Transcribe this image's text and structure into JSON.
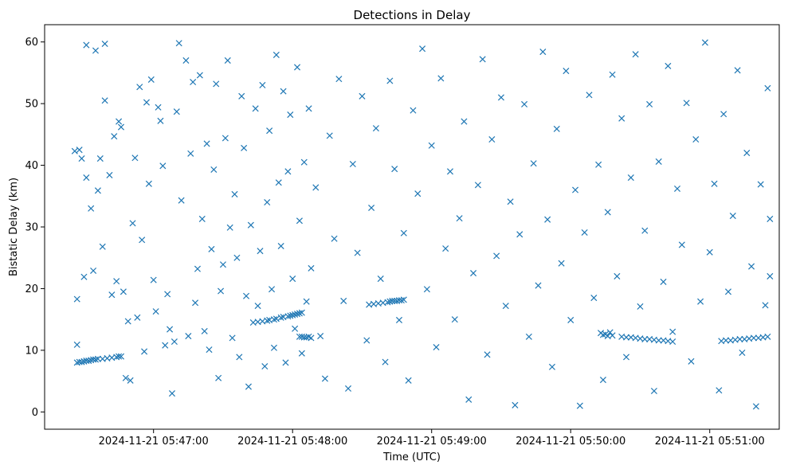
{
  "chart_data": {
    "type": "scatter",
    "title": "Detections in Delay",
    "xlabel": "Time (UTC)",
    "ylabel": "Bistatic Delay (km)",
    "marker": "x",
    "grid": false,
    "colors": {
      "series": "#1f77b4",
      "axes": "#000000"
    },
    "x_unit": "seconds after 2024-11-21 05:47:00 UTC",
    "xlim": [
      -47,
      270
    ],
    "ylim": [
      -2.8,
      62.8
    ],
    "x_ticks": [
      {
        "value": 0,
        "label": "2024-11-21 05:47:00"
      },
      {
        "value": 60,
        "label": "2024-11-21 05:48:00"
      },
      {
        "value": 120,
        "label": "2024-11-21 05:49:00"
      },
      {
        "value": 180,
        "label": "2024-11-21 05:50:00"
      },
      {
        "value": 240,
        "label": "2024-11-21 05:51:00"
      }
    ],
    "y_ticks": [
      {
        "value": 0,
        "label": "0"
      },
      {
        "value": 10,
        "label": "10"
      },
      {
        "value": 20,
        "label": "20"
      },
      {
        "value": 30,
        "label": "30"
      },
      {
        "value": 40,
        "label": "40"
      },
      {
        "value": 50,
        "label": "50"
      },
      {
        "value": 60,
        "label": "60"
      }
    ],
    "track_points": [
      [
        -33,
        8.0
      ],
      [
        -32,
        8.1
      ],
      [
        -31,
        8.1
      ],
      [
        -30,
        8.2
      ],
      [
        -29,
        8.3
      ],
      [
        -28,
        8.3
      ],
      [
        -27,
        8.4
      ],
      [
        -26,
        8.5
      ],
      [
        -25,
        8.5
      ],
      [
        -24,
        8.6
      ],
      [
        -22,
        8.6
      ],
      [
        -20,
        8.7
      ],
      [
        -18,
        8.8
      ],
      [
        -16,
        8.9
      ],
      [
        -15,
        9.0
      ],
      [
        -14,
        9.0
      ],
      [
        43,
        14.5
      ],
      [
        45,
        14.6
      ],
      [
        47,
        14.7
      ],
      [
        49,
        14.8
      ],
      [
        50,
        14.9
      ],
      [
        52,
        15.0
      ],
      [
        53,
        15.1
      ],
      [
        55,
        15.3
      ],
      [
        56,
        15.4
      ],
      [
        58,
        15.5
      ],
      [
        59,
        15.6
      ],
      [
        60,
        15.7
      ],
      [
        61,
        15.8
      ],
      [
        62,
        15.9
      ],
      [
        63,
        16.0
      ],
      [
        64,
        16.1
      ],
      [
        63,
        12.2
      ],
      [
        64,
        12.2
      ],
      [
        65,
        12.1
      ],
      [
        66,
        12.1
      ],
      [
        67,
        12.2
      ],
      [
        68,
        12.0
      ],
      [
        93,
        17.4
      ],
      [
        95,
        17.5
      ],
      [
        97,
        17.6
      ],
      [
        99,
        17.7
      ],
      [
        101,
        17.8
      ],
      [
        102,
        17.9
      ],
      [
        103,
        18.0
      ],
      [
        104,
        18.0
      ],
      [
        105,
        18.0
      ],
      [
        106,
        18.1
      ],
      [
        107,
        18.1
      ],
      [
        108,
        18.2
      ],
      [
        193,
        12.8
      ],
      [
        194,
        12.5
      ],
      [
        195,
        12.6
      ],
      [
        196,
        12.3
      ],
      [
        197,
        12.9
      ],
      [
        198,
        12.4
      ],
      [
        202,
        12.2
      ],
      [
        204,
        12.1
      ],
      [
        206,
        12.1
      ],
      [
        208,
        12.0
      ],
      [
        210,
        11.9
      ],
      [
        212,
        11.8
      ],
      [
        214,
        11.8
      ],
      [
        216,
        11.7
      ],
      [
        218,
        11.6
      ],
      [
        220,
        11.6
      ],
      [
        222,
        11.5
      ],
      [
        224,
        11.4
      ],
      [
        245,
        11.5
      ],
      [
        247,
        11.6
      ],
      [
        249,
        11.6
      ],
      [
        251,
        11.7
      ],
      [
        253,
        11.8
      ],
      [
        255,
        11.8
      ],
      [
        257,
        11.9
      ],
      [
        259,
        12.0
      ],
      [
        261,
        12.0
      ],
      [
        263,
        12.1
      ],
      [
        265,
        12.2
      ]
    ],
    "scattered_points": [
      [
        -34,
        42.3
      ],
      [
        -33,
        18.3
      ],
      [
        -33,
        10.9
      ],
      [
        -32,
        42.5
      ],
      [
        -31,
        41.1
      ],
      [
        -30,
        21.9
      ],
      [
        -29,
        59.5
      ],
      [
        -29,
        38.0
      ],
      [
        -27,
        33.0
      ],
      [
        -26,
        22.9
      ],
      [
        -25,
        58.6
      ],
      [
        -24,
        35.9
      ],
      [
        -23,
        41.1
      ],
      [
        -22,
        26.8
      ],
      [
        -21,
        59.7
      ],
      [
        -21,
        50.5
      ],
      [
        -19,
        38.4
      ],
      [
        -18,
        19.0
      ],
      [
        -17,
        44.7
      ],
      [
        -16,
        21.2
      ],
      [
        -15,
        47.1
      ],
      [
        -14,
        46.2
      ],
      [
        -13,
        19.5
      ],
      [
        -12,
        5.5
      ],
      [
        -11,
        14.7
      ],
      [
        -10,
        5.1
      ],
      [
        -9,
        30.6
      ],
      [
        -8,
        41.2
      ],
      [
        -7,
        15.3
      ],
      [
        -6,
        52.7
      ],
      [
        -5,
        27.9
      ],
      [
        -4,
        9.8
      ],
      [
        -3,
        50.2
      ],
      [
        -2,
        37.0
      ],
      [
        -1,
        53.9
      ],
      [
        0,
        21.4
      ],
      [
        1,
        16.3
      ],
      [
        2,
        49.4
      ],
      [
        3,
        47.2
      ],
      [
        4,
        39.9
      ],
      [
        5,
        10.8
      ],
      [
        6,
        19.1
      ],
      [
        7,
        13.4
      ],
      [
        8,
        3.0
      ],
      [
        9,
        11.4
      ],
      [
        10,
        48.7
      ],
      [
        11,
        59.8
      ],
      [
        12,
        34.3
      ],
      [
        14,
        57.0
      ],
      [
        15,
        12.3
      ],
      [
        16,
        41.9
      ],
      [
        17,
        53.5
      ],
      [
        18,
        17.7
      ],
      [
        19,
        23.2
      ],
      [
        20,
        54.6
      ],
      [
        21,
        31.3
      ],
      [
        22,
        13.1
      ],
      [
        23,
        43.5
      ],
      [
        24,
        10.1
      ],
      [
        25,
        26.4
      ],
      [
        26,
        39.3
      ],
      [
        27,
        53.2
      ],
      [
        28,
        5.5
      ],
      [
        29,
        19.6
      ],
      [
        30,
        23.9
      ],
      [
        31,
        44.4
      ],
      [
        32,
        57.0
      ],
      [
        33,
        29.9
      ],
      [
        34,
        12.0
      ],
      [
        35,
        35.3
      ],
      [
        36,
        25.0
      ],
      [
        37,
        8.9
      ],
      [
        38,
        51.2
      ],
      [
        39,
        42.8
      ],
      [
        40,
        18.8
      ],
      [
        41,
        4.1
      ],
      [
        42,
        30.3
      ],
      [
        44,
        49.2
      ],
      [
        45,
        17.2
      ],
      [
        46,
        26.1
      ],
      [
        47,
        53.0
      ],
      [
        48,
        7.4
      ],
      [
        49,
        34.0
      ],
      [
        50,
        45.6
      ],
      [
        51,
        19.9
      ],
      [
        52,
        10.4
      ],
      [
        53,
        57.9
      ],
      [
        54,
        37.2
      ],
      [
        55,
        26.9
      ],
      [
        56,
        52.0
      ],
      [
        57,
        8.0
      ],
      [
        58,
        39.0
      ],
      [
        59,
        48.2
      ],
      [
        60,
        21.6
      ],
      [
        61,
        13.5
      ],
      [
        62,
        55.9
      ],
      [
        63,
        31.0
      ],
      [
        64,
        9.5
      ],
      [
        65,
        40.5
      ],
      [
        66,
        17.9
      ],
      [
        67,
        49.2
      ],
      [
        68,
        23.3
      ],
      [
        70,
        36.4
      ],
      [
        72,
        12.3
      ],
      [
        74,
        5.4
      ],
      [
        76,
        44.8
      ],
      [
        78,
        28.1
      ],
      [
        80,
        54.0
      ],
      [
        82,
        18.0
      ],
      [
        84,
        3.8
      ],
      [
        86,
        40.2
      ],
      [
        88,
        25.8
      ],
      [
        90,
        51.2
      ],
      [
        92,
        11.6
      ],
      [
        94,
        33.1
      ],
      [
        96,
        46.0
      ],
      [
        98,
        21.6
      ],
      [
        100,
        8.1
      ],
      [
        102,
        53.7
      ],
      [
        104,
        39.4
      ],
      [
        106,
        14.9
      ],
      [
        108,
        29.0
      ],
      [
        110,
        5.1
      ],
      [
        112,
        48.9
      ],
      [
        114,
        35.4
      ],
      [
        116,
        58.9
      ],
      [
        118,
        19.9
      ],
      [
        120,
        43.2
      ],
      [
        122,
        10.5
      ],
      [
        124,
        54.1
      ],
      [
        126,
        26.5
      ],
      [
        128,
        39.0
      ],
      [
        130,
        15.0
      ],
      [
        132,
        31.4
      ],
      [
        134,
        47.1
      ],
      [
        136,
        2.0
      ],
      [
        138,
        22.5
      ],
      [
        140,
        36.8
      ],
      [
        142,
        57.2
      ],
      [
        144,
        9.3
      ],
      [
        146,
        44.2
      ],
      [
        148,
        25.3
      ],
      [
        150,
        51.0
      ],
      [
        152,
        17.2
      ],
      [
        154,
        34.1
      ],
      [
        156,
        1.1
      ],
      [
        158,
        28.8
      ],
      [
        160,
        49.9
      ],
      [
        162,
        12.2
      ],
      [
        164,
        40.3
      ],
      [
        166,
        20.5
      ],
      [
        168,
        58.4
      ],
      [
        170,
        31.2
      ],
      [
        172,
        7.3
      ],
      [
        174,
        45.9
      ],
      [
        176,
        24.1
      ],
      [
        178,
        55.3
      ],
      [
        180,
        14.9
      ],
      [
        182,
        36.0
      ],
      [
        184,
        1.0
      ],
      [
        186,
        29.1
      ],
      [
        188,
        51.4
      ],
      [
        190,
        18.5
      ],
      [
        192,
        40.1
      ],
      [
        194,
        5.2
      ],
      [
        196,
        32.4
      ],
      [
        198,
        54.7
      ],
      [
        200,
        22.0
      ],
      [
        202,
        47.6
      ],
      [
        204,
        8.9
      ],
      [
        206,
        38.0
      ],
      [
        208,
        58.0
      ],
      [
        210,
        17.1
      ],
      [
        212,
        29.4
      ],
      [
        214,
        49.9
      ],
      [
        216,
        3.4
      ],
      [
        218,
        40.6
      ],
      [
        220,
        21.1
      ],
      [
        222,
        56.1
      ],
      [
        224,
        13.0
      ],
      [
        226,
        36.2
      ],
      [
        228,
        27.1
      ],
      [
        230,
        50.1
      ],
      [
        232,
        8.2
      ],
      [
        234,
        44.2
      ],
      [
        236,
        17.9
      ],
      [
        238,
        59.9
      ],
      [
        240,
        25.9
      ],
      [
        242,
        37.0
      ],
      [
        244,
        3.5
      ],
      [
        246,
        48.3
      ],
      [
        248,
        19.5
      ],
      [
        250,
        31.8
      ],
      [
        252,
        55.4
      ],
      [
        254,
        9.6
      ],
      [
        256,
        42.0
      ],
      [
        258,
        23.6
      ],
      [
        260,
        0.9
      ],
      [
        262,
        36.9
      ],
      [
        264,
        17.3
      ],
      [
        265,
        52.5
      ],
      [
        266,
        31.3
      ],
      [
        266,
        22.0
      ]
    ]
  }
}
